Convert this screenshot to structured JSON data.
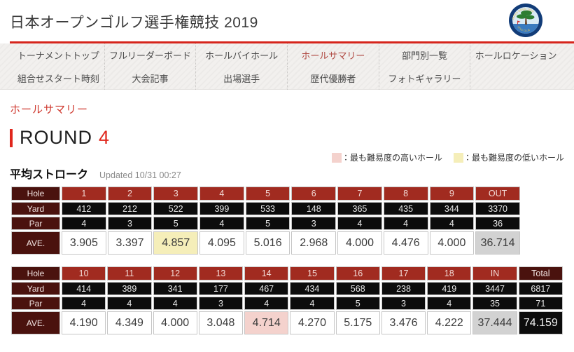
{
  "header": {
    "title": "日本オープンゴルフ選手権競技 2019",
    "logo": {
      "top_text": "JAPAN OPEN 2019",
      "bottom_text": "GOLF CLUB"
    }
  },
  "nav": {
    "row1": [
      {
        "label": "トーナメントトップ",
        "active": false
      },
      {
        "label": "フルリーダーボード",
        "active": false
      },
      {
        "label": "ホールバイホール",
        "active": false
      },
      {
        "label": "ホールサマリー",
        "active": true
      },
      {
        "label": "部門別一覧",
        "active": false
      },
      {
        "label": "ホールロケーション",
        "active": false
      }
    ],
    "row2": [
      {
        "label": "組合せスタート時刻"
      },
      {
        "label": "大会記事"
      },
      {
        "label": "出場選手"
      },
      {
        "label": "歴代優勝者"
      },
      {
        "label": "フォトギャラリー"
      }
    ]
  },
  "page": {
    "section_title": "ホールサマリー",
    "round_label": "ROUND",
    "round_number": "4"
  },
  "legend": {
    "highest": {
      "label": "：最も難易度の高いホール",
      "swatch_color": "#f4d2cd"
    },
    "lowest": {
      "label": "：最も難易度の低いホール",
      "swatch_color": "#f5eeb9"
    }
  },
  "average": {
    "title": "平均ストローク",
    "updated": "Updated 10/31 00:27"
  },
  "colors": {
    "accent_red": "#d6251c",
    "nav_active_red": "#b04a43",
    "table_label_maroon": "#4a120e",
    "table_hole_red": "#a12b20",
    "table_value_black": "#0c0c0c",
    "subtotal_gray": "#d2d2d2",
    "highest_pink": "#f4d2cd",
    "lowest_yellow": "#f5eeb9"
  },
  "tables": [
    {
      "name": "front-nine",
      "row_labels": {
        "hole": "Hole",
        "yard": "Yard",
        "par": "Par",
        "ave": "AVE."
      },
      "columns": [
        {
          "hole": "1",
          "yard": "412",
          "par": "4",
          "ave": "3.905"
        },
        {
          "hole": "2",
          "yard": "212",
          "par": "3",
          "ave": "3.397"
        },
        {
          "hole": "3",
          "yard": "522",
          "par": "5",
          "ave": "4.857",
          "ave_style": "lowest"
        },
        {
          "hole": "4",
          "yard": "399",
          "par": "4",
          "ave": "4.095"
        },
        {
          "hole": "5",
          "yard": "533",
          "par": "5",
          "ave": "5.016"
        },
        {
          "hole": "6",
          "yard": "148",
          "par": "3",
          "ave": "2.968"
        },
        {
          "hole": "7",
          "yard": "365",
          "par": "4",
          "ave": "4.000"
        },
        {
          "hole": "8",
          "yard": "435",
          "par": "4",
          "ave": "4.476"
        },
        {
          "hole": "9",
          "yard": "344",
          "par": "4",
          "ave": "4.000"
        },
        {
          "hole": "OUT",
          "yard": "3370",
          "par": "36",
          "ave": "36.714",
          "ave_style": "subtotal"
        }
      ]
    },
    {
      "name": "back-nine",
      "row_labels": {
        "hole": "Hole",
        "yard": "Yard",
        "par": "Par",
        "ave": "AVE."
      },
      "columns": [
        {
          "hole": "10",
          "yard": "414",
          "par": "4",
          "ave": "4.190"
        },
        {
          "hole": "11",
          "yard": "389",
          "par": "4",
          "ave": "4.349"
        },
        {
          "hole": "12",
          "yard": "341",
          "par": "4",
          "ave": "4.000"
        },
        {
          "hole": "13",
          "yard": "177",
          "par": "3",
          "ave": "3.048"
        },
        {
          "hole": "14",
          "yard": "467",
          "par": "4",
          "ave": "4.714",
          "ave_style": "highest"
        },
        {
          "hole": "15",
          "yard": "434",
          "par": "4",
          "ave": "4.270"
        },
        {
          "hole": "16",
          "yard": "568",
          "par": "5",
          "ave": "5.175"
        },
        {
          "hole": "17",
          "yard": "238",
          "par": "3",
          "ave": "3.476"
        },
        {
          "hole": "18",
          "yard": "419",
          "par": "4",
          "ave": "4.222"
        },
        {
          "hole": "IN",
          "yard": "3447",
          "par": "35",
          "ave": "37.444",
          "ave_style": "subtotal"
        },
        {
          "hole": "Total",
          "yard": "6817",
          "par": "71",
          "ave": "74.159",
          "head": "dark",
          "ave_style": "total"
        }
      ]
    }
  ]
}
